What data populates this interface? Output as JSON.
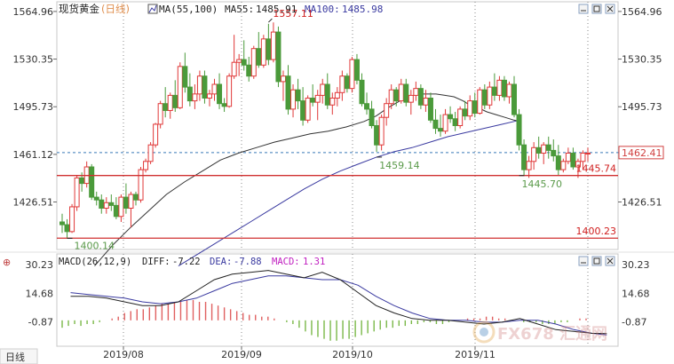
{
  "header": {
    "title": "现货黄金",
    "period": "(日线)",
    "ma_label": "MA(55,100)",
    "ma55_label": "MA55:",
    "ma55_value": "1485.91",
    "ma100_label": "MA100:",
    "ma100_value": "1485.98"
  },
  "macd_header": {
    "name": "MACD(26,12,9)",
    "diff_label": "DIFF:",
    "diff_value": "-7.22",
    "dea_label": "DEA:",
    "dea_value": "-7.88",
    "macd_label": "MACD:",
    "macd_value": "1.31"
  },
  "bottom_tab": "日线",
  "watermark": "FX678 汇通网",
  "colors": {
    "up": "#e03838",
    "down": "#4a9a3a",
    "ma55": "#333333",
    "ma100": "#3a3aa0",
    "support": "#d03030",
    "current": "#3a7ab8",
    "annot_green": "#5a9a4a",
    "annot_red": "#d02020"
  },
  "chart_data": {
    "type": "candlestick",
    "instrument": "现货黄金",
    "timeframe": "日线",
    "x_ticks": [
      "2019/08",
      "2019/09",
      "2019/10",
      "2019/11"
    ],
    "y_ticks": [
      "1564.96",
      "1530.35",
      "1495.73",
      "1461.12",
      "1426.51"
    ],
    "y_right_ticks": [
      "1564.96",
      "1530.35",
      "1495.73",
      "1426.51"
    ],
    "ylim": [
      1392,
      1572
    ],
    "current_price": "1462.41",
    "horizontal_lines": [
      {
        "value": 1445.74,
        "label": "1445.74"
      },
      {
        "value": 1400.23,
        "label": "1400.23"
      }
    ],
    "annotations": [
      {
        "label": "1557.11",
        "value": 1557.11
      },
      {
        "label": "1459.14",
        "value": 1459.14
      },
      {
        "label": "1445.70",
        "value": 1445.7
      },
      {
        "label": "1400.14",
        "value": 1400.14
      }
    ],
    "candles": [
      [
        1412,
        1418,
        1404,
        1410
      ],
      [
        1410,
        1414,
        1400,
        1405
      ],
      [
        1405,
        1425,
        1404,
        1423
      ],
      [
        1423,
        1446,
        1420,
        1444
      ],
      [
        1444,
        1448,
        1434,
        1440
      ],
      [
        1440,
        1456,
        1437,
        1452
      ],
      [
        1452,
        1454,
        1428,
        1430
      ],
      [
        1430,
        1434,
        1424,
        1428
      ],
      [
        1428,
        1432,
        1418,
        1422
      ],
      [
        1422,
        1430,
        1418,
        1426
      ],
      [
        1426,
        1432,
        1420,
        1424
      ],
      [
        1424,
        1430,
        1414,
        1416
      ],
      [
        1416,
        1432,
        1412,
        1430
      ],
      [
        1430,
        1440,
        1418,
        1422
      ],
      [
        1422,
        1434,
        1408,
        1432
      ],
      [
        1432,
        1434,
        1424,
        1428
      ],
      [
        1428,
        1452,
        1426,
        1450
      ],
      [
        1450,
        1458,
        1448,
        1456
      ],
      [
        1456,
        1470,
        1454,
        1468
      ],
      [
        1468,
        1484,
        1466,
        1483
      ],
      [
        1483,
        1500,
        1480,
        1498
      ],
      [
        1498,
        1510,
        1488,
        1493
      ],
      [
        1493,
        1506,
        1487,
        1504
      ],
      [
        1504,
        1515,
        1492,
        1495
      ],
      [
        1495,
        1528,
        1494,
        1525
      ],
      [
        1525,
        1535,
        1506,
        1510
      ],
      [
        1510,
        1520,
        1496,
        1500
      ],
      [
        1500,
        1512,
        1494,
        1505
      ],
      [
        1505,
        1522,
        1500,
        1518
      ],
      [
        1518,
        1522,
        1498,
        1502
      ],
      [
        1502,
        1508,
        1496,
        1505
      ],
      [
        1505,
        1516,
        1500,
        1512
      ],
      [
        1512,
        1520,
        1494,
        1498
      ],
      [
        1498,
        1502,
        1492,
        1496
      ],
      [
        1496,
        1520,
        1495,
        1518
      ],
      [
        1518,
        1548,
        1516,
        1528
      ],
      [
        1528,
        1534,
        1518,
        1530
      ],
      [
        1530,
        1544,
        1522,
        1526
      ],
      [
        1526,
        1532,
        1514,
        1518
      ],
      [
        1518,
        1540,
        1516,
        1538
      ],
      [
        1538,
        1550,
        1524,
        1526
      ],
      [
        1526,
        1548,
        1524,
        1545
      ],
      [
        1545,
        1556,
        1526,
        1530
      ],
      [
        1530,
        1557,
        1528,
        1550
      ],
      [
        1550,
        1554,
        1510,
        1514
      ],
      [
        1514,
        1522,
        1500,
        1518
      ],
      [
        1518,
        1526,
        1490,
        1494
      ],
      [
        1494,
        1512,
        1488,
        1508
      ],
      [
        1508,
        1516,
        1494,
        1500
      ],
      [
        1500,
        1510,
        1482,
        1486
      ],
      [
        1486,
        1504,
        1484,
        1502
      ],
      [
        1502,
        1512,
        1496,
        1499
      ],
      [
        1499,
        1508,
        1486,
        1504
      ],
      [
        1504,
        1516,
        1498,
        1512
      ],
      [
        1512,
        1520,
        1494,
        1497
      ],
      [
        1497,
        1506,
        1490,
        1502
      ],
      [
        1502,
        1510,
        1496,
        1506
      ],
      [
        1506,
        1522,
        1500,
        1518
      ],
      [
        1518,
        1520,
        1506,
        1509
      ],
      [
        1509,
        1532,
        1506,
        1530
      ],
      [
        1530,
        1534,
        1512,
        1515
      ],
      [
        1515,
        1520,
        1496,
        1498
      ],
      [
        1498,
        1506,
        1490,
        1494
      ],
      [
        1494,
        1500,
        1480,
        1482
      ],
      [
        1482,
        1486,
        1463,
        1468
      ],
      [
        1468,
        1490,
        1464,
        1488
      ],
      [
        1488,
        1502,
        1482,
        1498
      ],
      [
        1498,
        1512,
        1494,
        1508
      ],
      [
        1508,
        1510,
        1496,
        1500
      ],
      [
        1500,
        1516,
        1498,
        1512
      ],
      [
        1512,
        1516,
        1496,
        1499
      ],
      [
        1499,
        1508,
        1490,
        1504
      ],
      [
        1504,
        1514,
        1500,
        1509
      ],
      [
        1509,
        1512,
        1494,
        1497
      ],
      [
        1497,
        1508,
        1492,
        1502
      ],
      [
        1502,
        1506,
        1484,
        1486
      ],
      [
        1486,
        1494,
        1476,
        1480
      ],
      [
        1480,
        1490,
        1474,
        1478
      ],
      [
        1478,
        1494,
        1476,
        1490
      ],
      [
        1490,
        1496,
        1484,
        1487
      ],
      [
        1487,
        1492,
        1478,
        1482
      ],
      [
        1482,
        1496,
        1480,
        1494
      ],
      [
        1494,
        1500,
        1486,
        1489
      ],
      [
        1489,
        1504,
        1486,
        1500
      ],
      [
        1500,
        1506,
        1488,
        1491
      ],
      [
        1491,
        1510,
        1490,
        1508
      ],
      [
        1508,
        1512,
        1494,
        1497
      ],
      [
        1497,
        1514,
        1494,
        1510
      ],
      [
        1510,
        1520,
        1500,
        1504
      ],
      [
        1504,
        1518,
        1500,
        1515
      ],
      [
        1515,
        1518,
        1500,
        1503
      ],
      [
        1503,
        1514,
        1498,
        1512
      ],
      [
        1512,
        1518,
        1488,
        1490
      ],
      [
        1490,
        1494,
        1464,
        1468
      ],
      [
        1468,
        1472,
        1446,
        1450
      ],
      [
        1450,
        1460,
        1444,
        1456
      ],
      [
        1456,
        1470,
        1450,
        1466
      ],
      [
        1466,
        1474,
        1458,
        1462
      ],
      [
        1462,
        1470,
        1454,
        1468
      ],
      [
        1468,
        1474,
        1458,
        1464
      ],
      [
        1464,
        1472,
        1456,
        1460
      ],
      [
        1460,
        1468,
        1446,
        1450
      ],
      [
        1450,
        1458,
        1448,
        1456
      ],
      [
        1456,
        1466,
        1454,
        1462
      ],
      [
        1462,
        1466,
        1450,
        1452
      ],
      [
        1452,
        1458,
        1444,
        1456
      ],
      [
        1456,
        1464,
        1450,
        1462
      ],
      [
        1462,
        1466,
        1456,
        1462
      ]
    ],
    "ma55": [
      [
        1404,
        1380
      ],
      [
        1416,
        1395
      ],
      [
        1428,
        1408
      ],
      [
        1440,
        1420
      ],
      [
        1452,
        1432
      ],
      [
        1464,
        1441
      ],
      [
        1476,
        1449
      ],
      [
        1488,
        1457
      ],
      [
        1500,
        1462
      ],
      [
        1512,
        1466
      ],
      [
        1524,
        1470
      ],
      [
        1536,
        1473
      ],
      [
        1548,
        1476
      ],
      [
        1560,
        1478
      ],
      [
        1572,
        1481
      ],
      [
        1584,
        1485
      ],
      [
        1592,
        1489
      ],
      [
        1600,
        1495
      ],
      [
        1608,
        1500
      ],
      [
        1614,
        1503
      ],
      [
        1620,
        1505
      ],
      [
        1626,
        1505
      ],
      [
        1632,
        1505
      ],
      [
        1638,
        1504
      ],
      [
        1644,
        1503
      ],
      [
        1650,
        1500
      ],
      [
        1656,
        1496
      ],
      [
        1662,
        1494
      ],
      [
        1666,
        1492
      ],
      [
        1672,
        1490
      ],
      [
        1678,
        1488
      ],
      [
        1684,
        1486
      ],
      [
        1688,
        1485
      ]
    ],
    "ma100": [
      [
        1460,
        1380
      ],
      [
        1472,
        1388
      ],
      [
        1484,
        1396
      ],
      [
        1496,
        1404
      ],
      [
        1508,
        1412
      ],
      [
        1520,
        1420
      ],
      [
        1532,
        1428
      ],
      [
        1544,
        1436
      ],
      [
        1556,
        1443
      ],
      [
        1568,
        1449
      ],
      [
        1580,
        1454
      ],
      [
        1592,
        1459
      ],
      [
        1604,
        1463
      ],
      [
        1616,
        1466
      ],
      [
        1628,
        1470
      ],
      [
        1640,
        1474
      ],
      [
        1652,
        1477
      ],
      [
        1664,
        1480
      ],
      [
        1676,
        1483
      ],
      [
        1688,
        1486
      ]
    ],
    "macd": {
      "name": "MACD(26,12,9)",
      "ylim": [
        -14,
        34
      ],
      "y_ticks": [
        "30.23",
        "14.68",
        "-0.87"
      ],
      "diff": [
        [
          1388,
          13
        ],
        [
          1400,
          13
        ],
        [
          1412,
          12
        ],
        [
          1424,
          10
        ],
        [
          1436,
          8
        ],
        [
          1448,
          8
        ],
        [
          1460,
          10
        ],
        [
          1472,
          16
        ],
        [
          1484,
          22
        ],
        [
          1496,
          25
        ],
        [
          1508,
          26
        ],
        [
          1520,
          27
        ],
        [
          1532,
          25
        ],
        [
          1544,
          23
        ],
        [
          1556,
          26
        ],
        [
          1568,
          22
        ],
        [
          1580,
          15
        ],
        [
          1592,
          8
        ],
        [
          1604,
          4
        ],
        [
          1616,
          1
        ],
        [
          1628,
          0
        ],
        [
          1640,
          0
        ],
        [
          1652,
          -1
        ],
        [
          1664,
          -2
        ],
        [
          1676,
          -1
        ],
        [
          1688,
          1
        ],
        [
          1700,
          -2
        ],
        [
          1712,
          -5
        ],
        [
          1724,
          -6
        ],
        [
          1736,
          -7
        ],
        [
          1746,
          -7.2
        ]
      ],
      "dea": [
        [
          1388,
          15
        ],
        [
          1400,
          14
        ],
        [
          1412,
          13
        ],
        [
          1424,
          12
        ],
        [
          1436,
          10
        ],
        [
          1448,
          9
        ],
        [
          1460,
          10
        ],
        [
          1472,
          12
        ],
        [
          1484,
          16
        ],
        [
          1496,
          20
        ],
        [
          1508,
          22
        ],
        [
          1520,
          24
        ],
        [
          1532,
          24
        ],
        [
          1544,
          23
        ],
        [
          1556,
          22
        ],
        [
          1568,
          22
        ],
        [
          1580,
          19
        ],
        [
          1592,
          13
        ],
        [
          1604,
          8
        ],
        [
          1616,
          4
        ],
        [
          1628,
          1
        ],
        [
          1640,
          0
        ],
        [
          1652,
          0
        ],
        [
          1664,
          -1
        ],
        [
          1676,
          -1
        ],
        [
          1688,
          0
        ],
        [
          1700,
          0
        ],
        [
          1712,
          -2
        ],
        [
          1724,
          -5
        ],
        [
          1736,
          -7
        ],
        [
          1746,
          -7.9
        ]
      ],
      "hist": [
        -4,
        -3,
        -2,
        -3,
        -2,
        -2,
        -1,
        0,
        1,
        2,
        4,
        5,
        6,
        6,
        7,
        8,
        9,
        9,
        10,
        10,
        11,
        11,
        10,
        10,
        9,
        8,
        7,
        6,
        5,
        4,
        3,
        3,
        2,
        2,
        1,
        0,
        -1,
        -2,
        -4,
        -6,
        -8,
        -9,
        -10,
        -11,
        -11,
        -10,
        -10,
        -9,
        -8,
        -7,
        -6,
        -5,
        -4,
        -4,
        -3,
        -3,
        -2,
        -2,
        -1,
        -1,
        -2,
        -2,
        -1,
        0,
        0,
        1,
        1,
        1,
        2,
        2,
        1,
        1,
        0,
        0,
        -1,
        -1,
        -1,
        -2,
        -2,
        -2,
        -1,
        -1,
        0,
        1,
        1
      ]
    }
  }
}
